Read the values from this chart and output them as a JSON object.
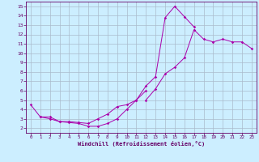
{
  "xlabel": "Windchill (Refroidissement éolien,°C)",
  "bg_color": "#cceeff",
  "grid_color": "#aabbcc",
  "line_color": "#aa00aa",
  "xlim": [
    -0.5,
    23.5
  ],
  "ylim": [
    1.5,
    15.5
  ],
  "xticks": [
    0,
    1,
    2,
    3,
    4,
    5,
    6,
    7,
    8,
    9,
    10,
    11,
    12,
    13,
    14,
    15,
    16,
    17,
    18,
    19,
    20,
    21,
    22,
    23
  ],
  "yticks": [
    2,
    3,
    4,
    5,
    6,
    7,
    8,
    9,
    10,
    11,
    12,
    13,
    14,
    15
  ],
  "line1": {
    "x": [
      0,
      1,
      2,
      3,
      4,
      5,
      6,
      7,
      8,
      9,
      10,
      11,
      12,
      13,
      14,
      15,
      16,
      17
    ],
    "y": [
      4.5,
      3.2,
      3.0,
      2.7,
      2.6,
      2.5,
      2.2,
      2.2,
      2.5,
      3.0,
      4.0,
      5.0,
      6.5,
      7.5,
      13.8,
      15.0,
      13.9,
      12.8
    ]
  },
  "line2": {
    "x": [
      12,
      13,
      14,
      15,
      16,
      17,
      18,
      19,
      20,
      21,
      22,
      23
    ],
    "y": [
      5.0,
      6.2,
      7.8,
      8.5,
      9.5,
      12.5,
      11.5,
      11.2,
      11.5,
      11.2,
      11.2,
      10.5
    ]
  },
  "line3": {
    "x": [
      1,
      2,
      3,
      4,
      5,
      6,
      7,
      8,
      9,
      10,
      11,
      12
    ],
    "y": [
      3.2,
      3.2,
      2.7,
      2.7,
      2.6,
      2.5,
      3.0,
      3.5,
      4.3,
      4.5,
      5.0,
      6.0
    ]
  }
}
